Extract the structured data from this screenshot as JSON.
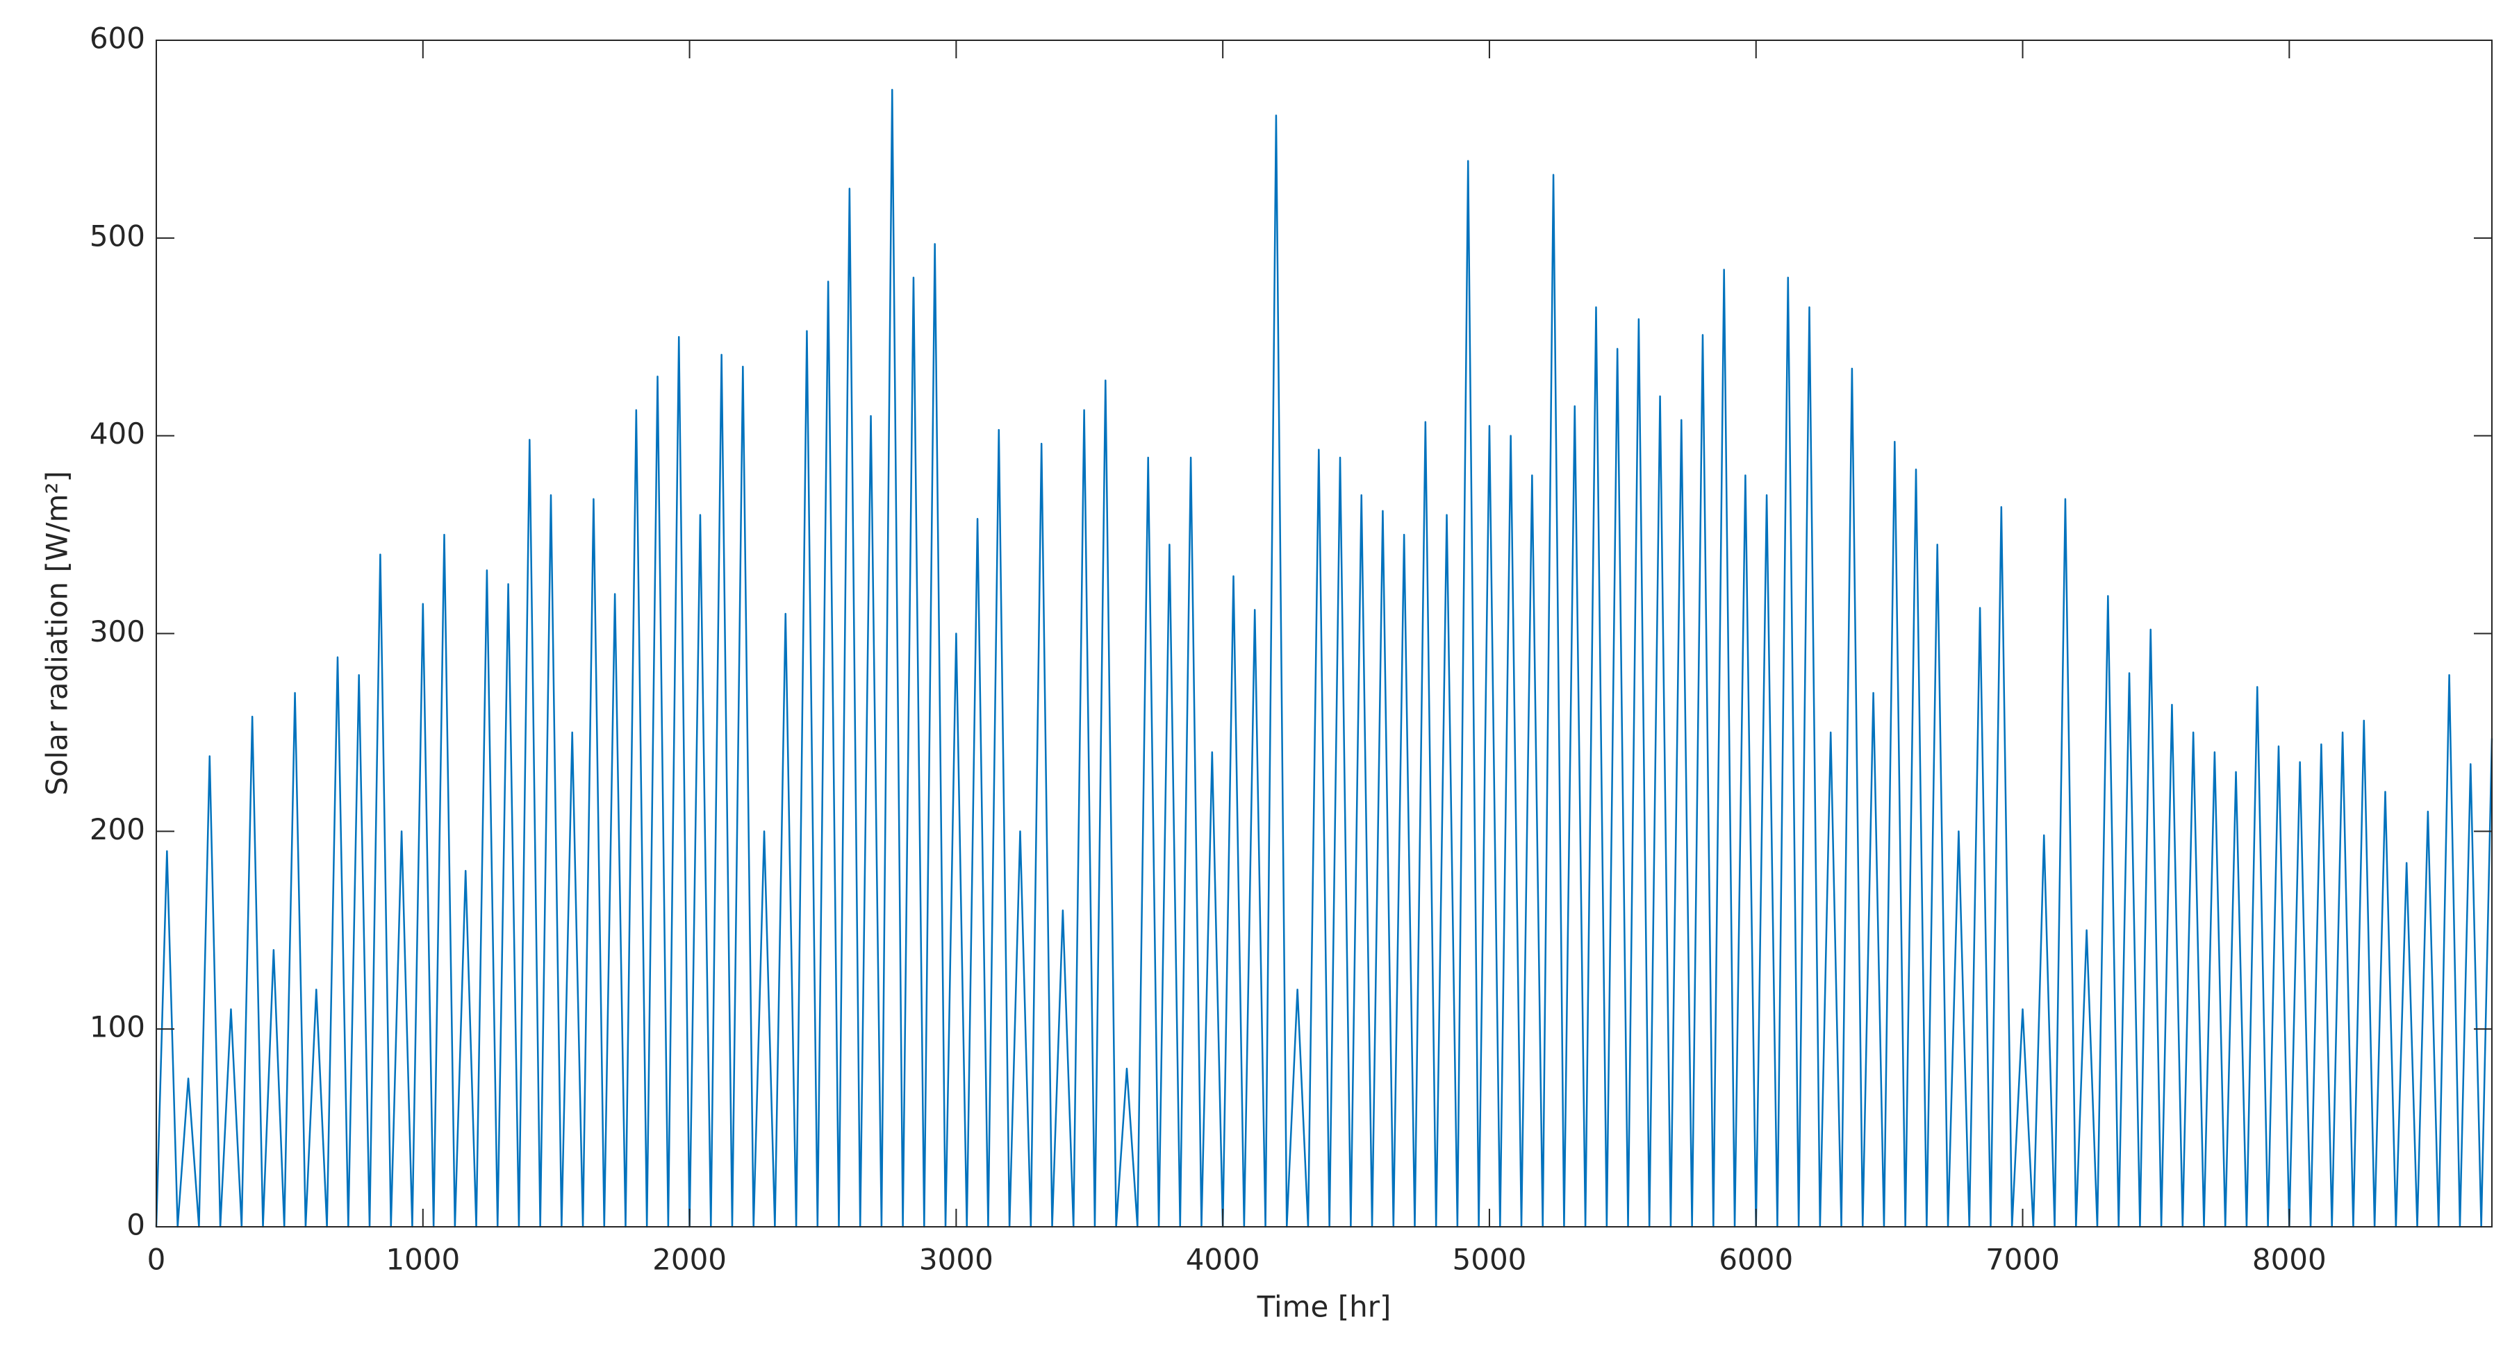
{
  "chart_data": {
    "type": "line",
    "xlabel": "Time [hr]",
    "ylabel": "Solar radiation [W/m²]",
    "xlim": [
      0,
      8760
    ],
    "ylim": [
      0,
      600
    ],
    "xticks": [
      0,
      1000,
      2000,
      3000,
      4000,
      5000,
      6000,
      7000,
      8000
    ],
    "yticks": [
      0,
      100,
      200,
      300,
      400,
      500,
      600
    ],
    "grid": false,
    "x": [
      0,
      40,
      80,
      120,
      160,
      200,
      240,
      280,
      320,
      360,
      400,
      440,
      480,
      520,
      560,
      600,
      640,
      680,
      720,
      760,
      800,
      840,
      880,
      920,
      960,
      1000,
      1040,
      1080,
      1120,
      1160,
      1200,
      1240,
      1280,
      1320,
      1360,
      1400,
      1440,
      1480,
      1520,
      1560,
      1600,
      1640,
      1680,
      1720,
      1760,
      1800,
      1840,
      1880,
      1920,
      1960,
      2000,
      2040,
      2080,
      2120,
      2160,
      2200,
      2240,
      2280,
      2320,
      2360,
      2400,
      2440,
      2480,
      2520,
      2560,
      2600,
      2640,
      2680,
      2720,
      2760,
      2800,
      2840,
      2880,
      2920,
      2960,
      3000,
      3040,
      3080,
      3120,
      3160,
      3200,
      3240,
      3280,
      3320,
      3360,
      3400,
      3440,
      3480,
      3520,
      3560,
      3600,
      3640,
      3680,
      3720,
      3760,
      3800,
      3840,
      3880,
      3920,
      3960,
      4000,
      4040,
      4080,
      4120,
      4160,
      4200,
      4240,
      4280,
      4320,
      4360,
      4400,
      4440,
      4480,
      4520,
      4560,
      4600,
      4640,
      4680,
      4720,
      4760,
      4800,
      4840,
      4880,
      4920,
      4960,
      5000,
      5040,
      5080,
      5120,
      5160,
      5200,
      5240,
      5280,
      5320,
      5360,
      5400,
      5440,
      5480,
      5520,
      5560,
      5600,
      5640,
      5680,
      5720,
      5760,
      5800,
      5840,
      5880,
      5920,
      5960,
      6000,
      6040,
      6080,
      6120,
      6160,
      6200,
      6240,
      6280,
      6320,
      6360,
      6400,
      6440,
      6480,
      6520,
      6560,
      6600,
      6640,
      6680,
      6720,
      6760,
      6800,
      6840,
      6880,
      6920,
      6960,
      7000,
      7040,
      7080,
      7120,
      7160,
      7200,
      7240,
      7280,
      7320,
      7360,
      7400,
      7440,
      7480,
      7520,
      7560,
      7600,
      7640,
      7680,
      7720,
      7760,
      7800,
      7840,
      7880,
      7920,
      7960,
      8000,
      8040,
      8080,
      8120,
      8160,
      8200,
      8240,
      8280,
      8320,
      8360,
      8400,
      8440,
      8480,
      8520,
      8560,
      8600,
      8640,
      8680,
      8720,
      8760
    ],
    "series": [
      {
        "color": "#0072bd",
        "values": [
          0,
          190,
          0,
          75,
          0,
          238,
          0,
          110,
          0,
          258,
          0,
          140,
          0,
          270,
          0,
          120,
          0,
          288,
          0,
          279,
          0,
          340,
          0,
          200,
          0,
          315,
          0,
          350,
          0,
          180,
          0,
          332,
          0,
          325,
          0,
          398,
          0,
          370,
          0,
          250,
          0,
          368,
          0,
          320,
          0,
          413,
          0,
          430,
          0,
          450,
          0,
          360,
          0,
          441,
          0,
          435,
          0,
          200,
          0,
          310,
          0,
          453,
          0,
          478,
          0,
          525,
          0,
          410,
          0,
          575,
          0,
          480,
          0,
          497,
          0,
          300,
          0,
          358,
          0,
          403,
          0,
          200,
          0,
          396,
          0,
          160,
          0,
          413,
          0,
          428,
          0,
          80,
          0,
          389,
          0,
          345,
          0,
          389,
          0,
          240,
          0,
          329,
          0,
          312,
          0,
          562,
          0,
          120,
          0,
          393,
          0,
          389,
          0,
          370,
          0,
          362,
          0,
          350,
          0,
          407,
          0,
          360,
          0,
          539,
          0,
          405,
          0,
          400,
          0,
          380,
          0,
          532,
          0,
          415,
          0,
          465,
          0,
          444,
          0,
          459,
          0,
          420,
          0,
          408,
          0,
          451,
          0,
          484,
          0,
          380,
          0,
          370,
          0,
          480,
          0,
          465,
          0,
          250,
          0,
          434,
          0,
          270,
          0,
          397,
          0,
          383,
          0,
          345,
          0,
          200,
          0,
          313,
          0,
          364,
          0,
          110,
          0,
          198,
          0,
          368,
          0,
          150,
          0,
          319,
          0,
          280,
          0,
          302,
          0,
          264,
          0,
          250,
          0,
          240,
          0,
          230,
          0,
          273,
          0,
          243,
          0,
          235,
          0,
          244,
          0,
          250,
          0,
          256,
          0,
          220,
          0,
          184,
          0,
          210,
          0,
          279,
          0,
          234,
          0,
          247
        ]
      }
    ]
  }
}
